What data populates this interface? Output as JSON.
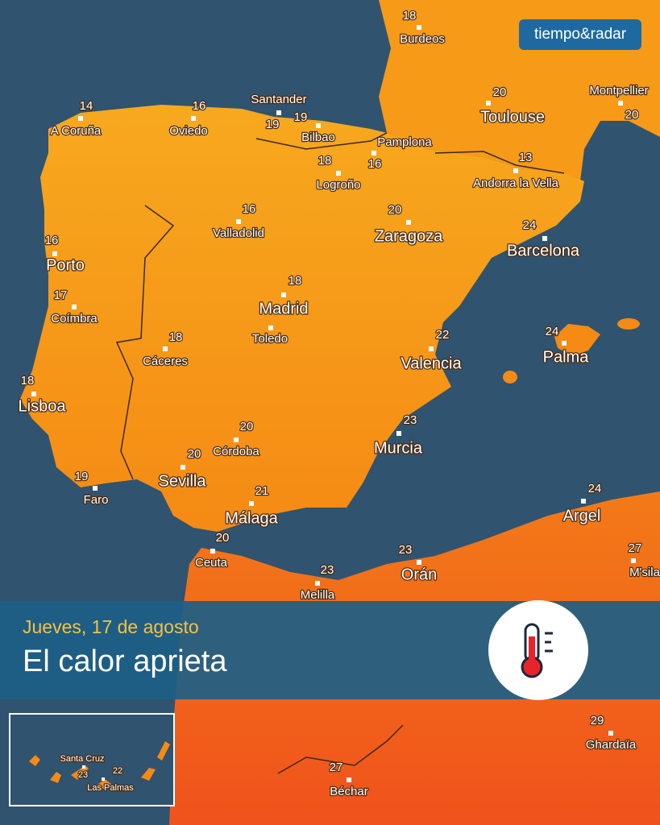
{
  "logo": "tiempo&radar",
  "banner": {
    "date": "Jueves, 17 de agosto",
    "title": "El calor aprieta"
  },
  "cities": [
    {
      "name": "Burdeos",
      "temp": 18
    },
    {
      "name": "Toulouse",
      "temp": 20
    },
    {
      "name": "Montpellier",
      "temp": 20
    },
    {
      "name": "A Coruña",
      "temp": 14
    },
    {
      "name": "Oviedo",
      "temp": 16
    },
    {
      "name": "Santander",
      "temp": 19
    },
    {
      "name": "Bilbao",
      "temp": 19
    },
    {
      "name": "Pamplona",
      "temp": 16
    },
    {
      "name": "Logroño",
      "temp": 18
    },
    {
      "name": "Andorra la Vella",
      "temp": 13
    },
    {
      "name": "Valladolid",
      "temp": 16
    },
    {
      "name": "Zaragoza",
      "temp": 20
    },
    {
      "name": "Barcelona",
      "temp": 24
    },
    {
      "name": "Porto",
      "temp": 16
    },
    {
      "name": "Coímbra",
      "temp": 17
    },
    {
      "name": "Madrid",
      "temp": 18
    },
    {
      "name": "Toledo"
    },
    {
      "name": "Cáceres",
      "temp": 18
    },
    {
      "name": "Lisboa",
      "temp": 18
    },
    {
      "name": "Valencia",
      "temp": 22
    },
    {
      "name": "Palma",
      "temp": 24
    },
    {
      "name": "Córdoba",
      "temp": 20
    },
    {
      "name": "Sevilla",
      "temp": 20
    },
    {
      "name": "Murcia",
      "temp": 23
    },
    {
      "name": "Faro",
      "temp": 19
    },
    {
      "name": "Málaga",
      "temp": 21
    },
    {
      "name": "Ceuta",
      "temp": 20
    },
    {
      "name": "Melilla",
      "temp": 23
    },
    {
      "name": "Orán",
      "temp": 23
    },
    {
      "name": "Argel",
      "temp": 24
    },
    {
      "name": "M'sila",
      "temp": 27
    },
    {
      "name": "Ghardaïa",
      "temp": 29
    },
    {
      "name": "Béchar",
      "temp": 27
    }
  ],
  "inset": {
    "cities": [
      {
        "name": "Santa Cruz",
        "temp": 23
      },
      {
        "name": "Las Palmas",
        "temp": 22
      }
    ]
  }
}
